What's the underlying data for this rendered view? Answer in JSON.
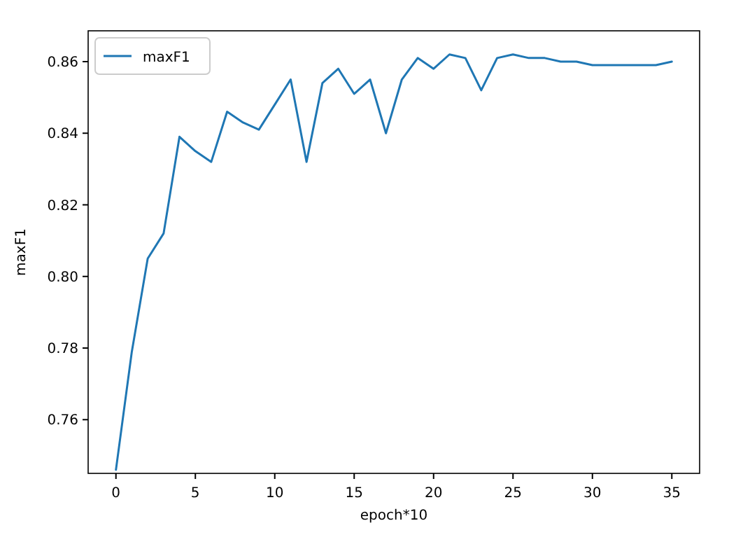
{
  "chart_data": {
    "type": "line",
    "xlabel": "epoch*10",
    "ylabel": "maxF1",
    "x": [
      0,
      1,
      2,
      3,
      4,
      5,
      6,
      7,
      8,
      9,
      10,
      11,
      12,
      13,
      14,
      15,
      16,
      17,
      18,
      19,
      20,
      21,
      22,
      23,
      24,
      25,
      26,
      27,
      28,
      29,
      30,
      31,
      32,
      33,
      34,
      35
    ],
    "series": [
      {
        "name": "maxF1",
        "color": "#1f77b4",
        "values": [
          0.746,
          0.779,
          0.805,
          0.812,
          0.839,
          0.835,
          0.832,
          0.846,
          0.843,
          0.841,
          0.848,
          0.855,
          0.832,
          0.854,
          0.858,
          0.851,
          0.855,
          0.84,
          0.855,
          0.861,
          0.858,
          0.862,
          0.861,
          0.852,
          0.861,
          0.862,
          0.861,
          0.861,
          0.86,
          0.86,
          0.859,
          0.859,
          0.859,
          0.859,
          0.859,
          0.86
        ]
      }
    ],
    "xlim": [
      -1.75,
      36.75
    ],
    "xticks": [
      0,
      5,
      10,
      15,
      20,
      25,
      30,
      35
    ],
    "ylim": [
      0.745,
      0.8686
    ],
    "yticks": [
      {
        "value": 0.76,
        "label": "0.76"
      },
      {
        "value": 0.78,
        "label": "0.78"
      },
      {
        "value": 0.8,
        "label": "0.80"
      },
      {
        "value": 0.82,
        "label": "0.82"
      },
      {
        "value": 0.84,
        "label": "0.84"
      },
      {
        "value": 0.86,
        "label": "0.86"
      }
    ],
    "legend": "top left",
    "grid": false,
    "marker": "none",
    "line_style": "solid"
  }
}
